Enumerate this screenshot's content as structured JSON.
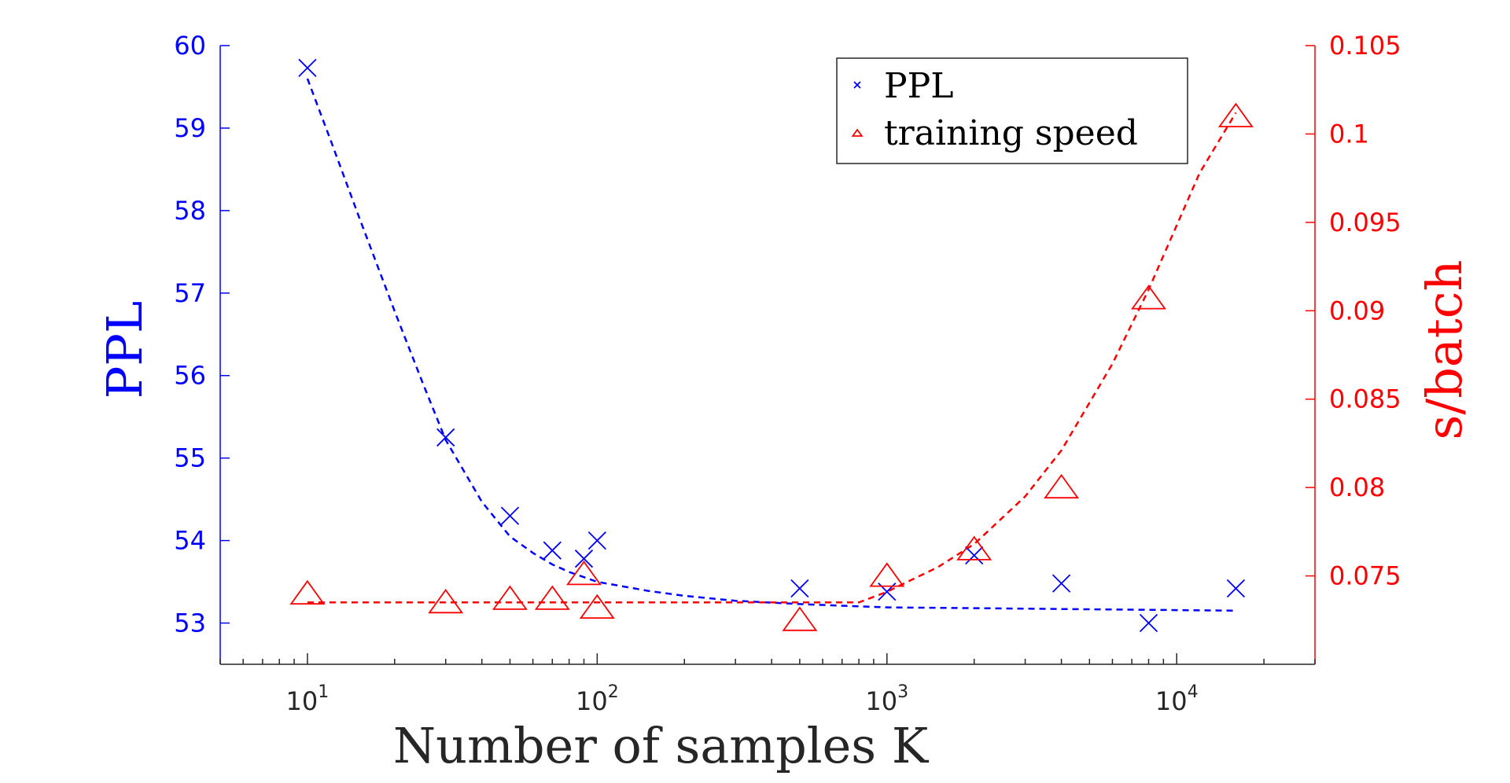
{
  "chart_data": {
    "type": "scatter",
    "xlabel": "Number of samples K",
    "ylabel_left": "PPL",
    "ylabel_right": "s/batch",
    "x_scale": "log",
    "xlim": [
      5,
      30000
    ],
    "x_ticks": [
      10,
      100,
      1000,
      10000
    ],
    "x_tick_labels": [
      {
        "base": "10",
        "exp": "1"
      },
      {
        "base": "10",
        "exp": "2"
      },
      {
        "base": "10",
        "exp": "3"
      },
      {
        "base": "10",
        "exp": "4"
      }
    ],
    "ylim_left": [
      52.5,
      60
    ],
    "y_ticks_left": [
      53,
      54,
      55,
      56,
      57,
      58,
      59,
      60
    ],
    "ylim_right": [
      0.07,
      0.105
    ],
    "y_ticks_right": [
      0.075,
      0.08,
      0.085,
      0.09,
      0.095,
      0.1,
      0.105
    ],
    "y_tick_labels_right": [
      "0.075",
      "0.08",
      "0.085",
      "0.09",
      "0.095",
      "0.1",
      "0.105"
    ],
    "grid": false,
    "legend_position": "top-right",
    "colors": {
      "left": "#0000ff",
      "right": "#ff0000",
      "axis_x": "#262626"
    },
    "series": [
      {
        "name": "PPL",
        "axis": "left",
        "marker": "x",
        "color": "#0000ff",
        "x": [
          10,
          30,
          50,
          70,
          90,
          100,
          500,
          1000,
          2000,
          4000,
          8000,
          16000
        ],
        "y": [
          59.73,
          55.25,
          54.3,
          53.88,
          53.78,
          54.0,
          53.42,
          53.38,
          53.82,
          53.48,
          53.0,
          53.42
        ]
      },
      {
        "name": "training speed",
        "axis": "right",
        "marker": "triangle",
        "color": "#ff0000",
        "x": [
          10,
          30,
          50,
          70,
          90,
          100,
          500,
          1000,
          2000,
          4000,
          8000,
          16000
        ],
        "y": [
          0.0739,
          0.0734,
          0.0736,
          0.0736,
          0.075,
          0.0731,
          0.0724,
          0.0749,
          0.0764,
          0.0799,
          0.0906,
          0.1009
        ]
      }
    ],
    "fits": [
      {
        "axis": "left",
        "color": "#0000ff",
        "style": "dashed",
        "x": [
          10,
          12,
          15,
          20,
          25,
          30,
          40,
          50,
          60,
          70,
          80,
          100,
          150,
          200,
          300,
          500,
          700,
          1000,
          2000,
          4000,
          8000,
          16000
        ],
        "y": [
          59.6,
          58.86,
          57.94,
          56.78,
          55.91,
          55.22,
          54.47,
          54.05,
          53.85,
          53.71,
          53.62,
          53.5,
          53.39,
          53.33,
          53.27,
          53.23,
          53.21,
          53.19,
          53.18,
          53.17,
          53.16,
          53.15
        ]
      },
      {
        "axis": "right",
        "color": "#ff0000",
        "style": "dashed",
        "x": [
          10,
          100,
          500,
          800,
          1000,
          1500,
          2000,
          3000,
          4000,
          6000,
          8000,
          12000,
          16000
        ],
        "y": [
          0.0735,
          0.0735,
          0.0735,
          0.0735,
          0.0741,
          0.0755,
          0.0768,
          0.0795,
          0.0821,
          0.087,
          0.0912,
          0.0978,
          0.1012
        ]
      }
    ]
  }
}
